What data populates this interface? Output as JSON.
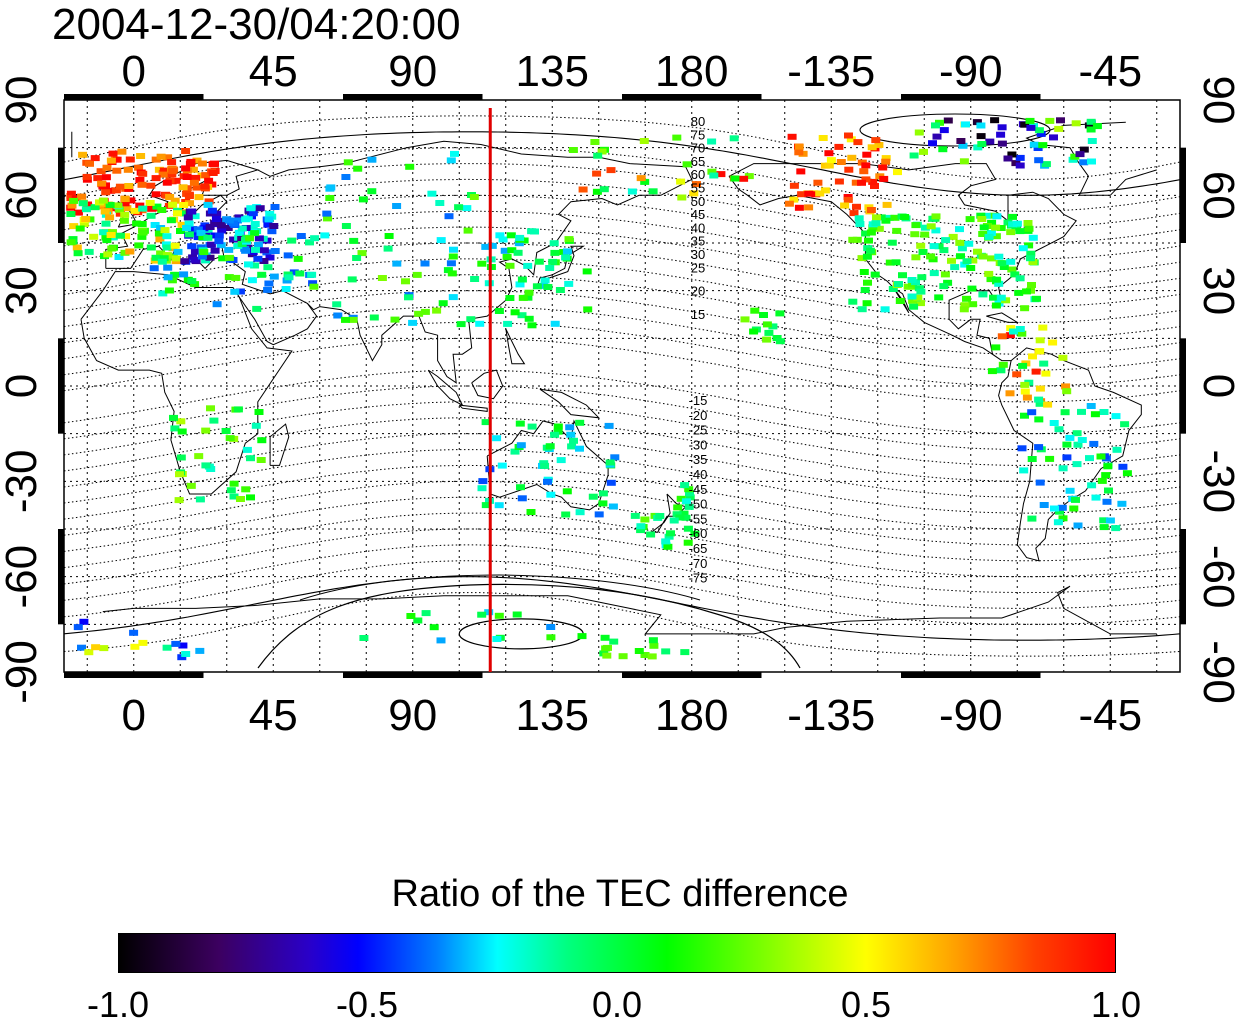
{
  "title": "2004-12-30/04:20:00",
  "map": {
    "lon_ticks_top": [
      "0",
      "45",
      "90",
      "135",
      "180",
      "-135",
      "-90",
      "-45"
    ],
    "lon_ticks_bottom": [
      "0",
      "45",
      "90",
      "135",
      "180",
      "-135",
      "-90",
      "-45"
    ],
    "lat_ticks_left": [
      "90",
      "60",
      "30",
      "0",
      "-30",
      "-60",
      "-90"
    ],
    "lat_ticks_right": [
      "90",
      "60",
      "30",
      "0",
      "-30",
      "-60",
      "-90"
    ],
    "marker_line_longitude": 115,
    "marker_line_color": "#e00000",
    "contour_labels_north": [
      "80",
      "75",
      "70",
      "65",
      "60",
      "55",
      "50",
      "45",
      "40",
      "35",
      "30",
      "25",
      "20",
      "15"
    ],
    "contour_labels_south": [
      "-15",
      "-20",
      "-25",
      "-30",
      "-35",
      "-40",
      "-45",
      "-50",
      "-55",
      "-60",
      "-65",
      "-70",
      "-75"
    ]
  },
  "colorbar": {
    "title": "Ratio of the TEC difference",
    "min": -1.0,
    "max": 1.0,
    "tick_labels": [
      "-1.0",
      "-0.5",
      "0.0",
      "0.5",
      "1.0"
    ],
    "colors": [
      "#000000",
      "#2a00c8",
      "#0000ff",
      "#00ffff",
      "#00ff00",
      "#ffff00",
      "#ff0000"
    ]
  }
}
